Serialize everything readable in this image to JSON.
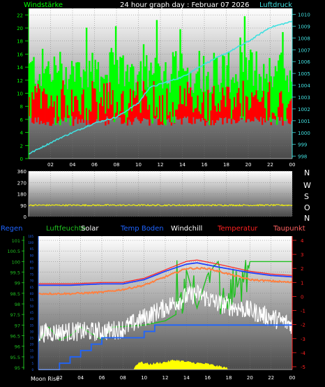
{
  "header": {
    "left_label": "Windstärke",
    "title": "24 hour graph day : Februar 07 2026",
    "right_label": "Luftdruck"
  },
  "wind_panel": {
    "directions": [
      "N",
      "W",
      "S",
      "O",
      "N"
    ]
  },
  "bottom_legend": [
    {
      "label": "Regen",
      "color": "#1e64ff"
    },
    {
      "label": "Luftfeuchte",
      "color": "#20c020"
    },
    {
      "label": "Solar",
      "color": "#ffffff"
    },
    {
      "label": "Temp Boden",
      "color": "#1e64ff"
    },
    {
      "label": "Windchill",
      "color": "#ffffff"
    },
    {
      "label": "Temperatur",
      "color": "#ff2020"
    },
    {
      "label": "Taupunkt",
      "color": "#ff6060"
    }
  ],
  "footer": {
    "moon_label": "Moon Rise"
  },
  "colors": {
    "wind_gust": "#00ff00",
    "wind_avg": "#ff0000",
    "pressure": "#40e0e0",
    "direction": "#ffff00",
    "temp": "#ff2020",
    "temp_boden": "#2040ff",
    "windchill": "#ffffff",
    "taupunkt": "#ff8040",
    "rain": "#1e64ff",
    "humidity": "#20c020",
    "solar": "#ffff00"
  },
  "chart_data": [
    {
      "type": "bar",
      "name": "wind-pressure",
      "x": [
        "02",
        "04",
        "06",
        "08",
        "10",
        "12",
        "14",
        "16",
        "18",
        "20",
        "22",
        "00"
      ],
      "left_axis": {
        "label": "Windstärke",
        "ticks": [
          0,
          2,
          4,
          6,
          8,
          10,
          12,
          14,
          16,
          18,
          20,
          22
        ],
        "ylim": [
          0,
          23
        ]
      },
      "right_axis": {
        "label": "Luftdruck",
        "ticks": [
          998,
          999,
          1000,
          1001,
          1002,
          1003,
          1004,
          1005,
          1006,
          1007,
          1008,
          1009,
          1010
        ],
        "ylim": [
          997.8,
          1010.5
        ]
      },
      "series": [
        {
          "kind": "gust",
          "axis": "left",
          "typical_range": [
            10,
            17
          ]
        },
        {
          "kind": "average",
          "axis": "left",
          "typical_range": [
            5,
            12
          ]
        },
        {
          "kind": "pressure",
          "axis": "right",
          "points": [
            [
              0,
              998.2
            ],
            [
              3,
              999.6
            ],
            [
              6,
              1000.8
            ],
            [
              8,
              1001.3
            ],
            [
              10,
              1002.5
            ],
            [
              11,
              1003.8
            ],
            [
              12,
              1004.1
            ],
            [
              14,
              1004.7
            ],
            [
              16,
              1005.8
            ],
            [
              18,
              1006.7
            ],
            [
              20,
              1007.7
            ],
            [
              22,
              1008.9
            ],
            [
              24,
              1009.4
            ]
          ]
        }
      ]
    },
    {
      "type": "line",
      "name": "wind-direction",
      "x": [
        "02",
        "04",
        "06",
        "08",
        "10",
        "12",
        "14",
        "16",
        "18",
        "20",
        "22",
        "00"
      ],
      "y_ticks": [
        0,
        90,
        180,
        270,
        360
      ],
      "ylim": [
        0,
        360
      ],
      "series": [
        {
          "kind": "direction",
          "mean": 90,
          "jitter": 12
        }
      ]
    },
    {
      "type": "line",
      "name": "temperature-humidity",
      "x": [
        "02",
        "04",
        "06",
        "08",
        "10",
        "12",
        "14",
        "16",
        "18",
        "20",
        "22",
        "00"
      ],
      "left_axis_blue": {
        "ticks": [
          0,
          5,
          10,
          15,
          20,
          25,
          30,
          35,
          40,
          45,
          50,
          55,
          60,
          65,
          70,
          75,
          80,
          85,
          90,
          95,
          100,
          105
        ],
        "ylim": [
          0,
          105
        ]
      },
      "left_axis_green": {
        "ticks": [
          95,
          95.5,
          96,
          96.5,
          97,
          97.5,
          98,
          98.5,
          99,
          99.5,
          100,
          100.5,
          101
        ],
        "ylim": [
          94.9,
          101.2
        ]
      },
      "right_axis": {
        "ticks": [
          4,
          3,
          2,
          1,
          0,
          -1,
          -2,
          -3,
          -4,
          -5
        ],
        "ylim": [
          -5.2,
          4.3
        ]
      },
      "series": [
        {
          "kind": "temp",
          "points": [
            [
              0,
              0.9
            ],
            [
              3,
              0.9
            ],
            [
              6,
              1.0
            ],
            [
              8,
              1.0
            ],
            [
              10,
              1.3
            ],
            [
              12,
              1.9
            ],
            [
              14,
              2.5
            ],
            [
              15,
              2.6
            ],
            [
              17,
              2.3
            ],
            [
              20,
              1.8
            ],
            [
              22,
              1.6
            ],
            [
              24,
              1.5
            ]
          ]
        },
        {
          "kind": "temp_boden",
          "points": [
            [
              0,
              0.8
            ],
            [
              3,
              0.8
            ],
            [
              6,
              0.9
            ],
            [
              8,
              0.9
            ],
            [
              10,
              1.2
            ],
            [
              12,
              1.8
            ],
            [
              14,
              2.3
            ],
            [
              15,
              2.4
            ],
            [
              17,
              2.1
            ],
            [
              20,
              1.7
            ],
            [
              22,
              1.5
            ],
            [
              24,
              1.4
            ]
          ]
        },
        {
          "kind": "taupunkt",
          "points": [
            [
              0,
              0.2
            ],
            [
              3,
              0.2
            ],
            [
              6,
              0.3
            ],
            [
              8,
              0.5
            ],
            [
              10,
              0.8
            ],
            [
              12,
              1.4
            ],
            [
              14,
              2.0
            ],
            [
              16,
              2.0
            ],
            [
              18,
              1.6
            ],
            [
              20,
              1.2
            ],
            [
              22,
              1.1
            ],
            [
              24,
              1.0
            ]
          ]
        },
        {
          "kind": "windchill",
          "points": [
            [
              0,
              -2.6
            ],
            [
              3,
              -2.5
            ],
            [
              6,
              -2.5
            ],
            [
              8,
              -2.3
            ],
            [
              10,
              -1.5
            ],
            [
              12,
              -0.8
            ],
            [
              14,
              0.0
            ],
            [
              15,
              0.2
            ],
            [
              17,
              -0.5
            ],
            [
              20,
              -1.0
            ],
            [
              22,
              -1.5
            ],
            [
              24,
              -2.0
            ]
          ],
          "noise": 0.7
        },
        {
          "kind": "humidity",
          "points": [
            [
              0,
              96.2
            ],
            [
              1,
              96.9
            ],
            [
              2,
              96.3
            ],
            [
              3,
              96.5
            ],
            [
              4,
              96.9
            ],
            [
              6,
              96.3
            ],
            [
              7,
              96.9
            ],
            [
              10,
              97.0
            ],
            [
              12,
              97.2
            ],
            [
              13,
              97.5
            ],
            [
              14,
              99.6
            ],
            [
              15,
              97.8
            ],
            [
              16,
              99.4
            ],
            [
              17,
              100.0
            ],
            [
              18,
              97.5
            ],
            [
              19,
              99.1
            ],
            [
              20,
              100.0
            ],
            [
              21,
              100.0
            ],
            [
              22,
              100.0
            ],
            [
              23,
              100.0
            ],
            [
              24,
              100.0
            ]
          ]
        },
        {
          "kind": "rain_cumulative",
          "points": [
            [
              0,
              0
            ],
            [
              2,
              5
            ],
            [
              3,
              10
            ],
            [
              4,
              15
            ],
            [
              5,
              20
            ],
            [
              6,
              25
            ],
            [
              10,
              30
            ],
            [
              11,
              35
            ],
            [
              20,
              35
            ],
            [
              22,
              35
            ],
            [
              24,
              35
            ]
          ]
        },
        {
          "kind": "solar",
          "points": [
            [
              0,
              0
            ],
            [
              9,
              0
            ],
            [
              9.5,
              3
            ],
            [
              10.5,
              2
            ],
            [
              12,
              3
            ],
            [
              13,
              4
            ],
            [
              14,
              3
            ],
            [
              16,
              2
            ],
            [
              17,
              1
            ],
            [
              18,
              0
            ],
            [
              24,
              0
            ]
          ]
        }
      ]
    }
  ]
}
